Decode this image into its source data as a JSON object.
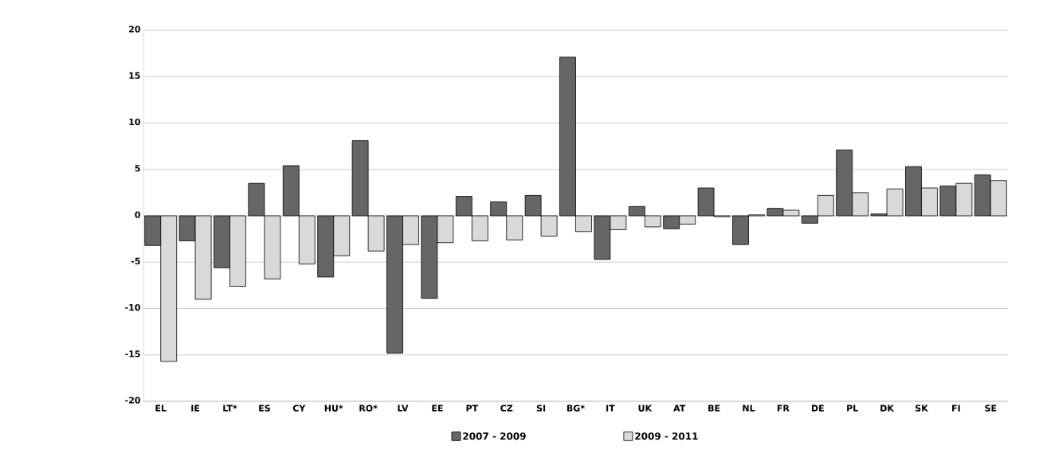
{
  "chart_data": {
    "type": "bar",
    "categories": [
      "EL",
      "IE",
      "LT*",
      "ES",
      "CY",
      "HU*",
      "RO*",
      "LV",
      "EE",
      "PT",
      "CZ",
      "SI",
      "BG*",
      "IT",
      "UK",
      "AT",
      "BE",
      "NL",
      "FR",
      "DE",
      "PL",
      "DK",
      "SK",
      "FI",
      "SE"
    ],
    "series": [
      {
        "name": "2007 - 2009",
        "color": "#666666",
        "values": [
          -3.2,
          -2.7,
          -5.6,
          3.5,
          5.4,
          -6.6,
          8.1,
          -14.8,
          -8.9,
          2.1,
          1.5,
          2.2,
          17.1,
          -4.7,
          1.0,
          -1.4,
          3.0,
          -3.1,
          0.8,
          -0.8,
          7.1,
          0.2,
          5.3,
          3.2,
          4.4
        ]
      },
      {
        "name": "2009 - 2011",
        "color": "#d9d9d9",
        "values": [
          -15.7,
          -9.0,
          -7.6,
          -6.8,
          -5.2,
          -4.3,
          -3.8,
          -3.1,
          -2.9,
          -2.7,
          -2.6,
          -2.2,
          -1.7,
          -1.5,
          -1.2,
          -0.9,
          -0.1,
          0.1,
          0.6,
          2.2,
          2.5,
          2.9,
          3.0,
          3.5,
          3.8
        ]
      }
    ],
    "ylim": [
      -20,
      20
    ],
    "yticks": [
      -20,
      -15,
      -10,
      -5,
      0,
      5,
      10,
      15,
      20
    ],
    "grid": "y",
    "legend": "bottom"
  }
}
